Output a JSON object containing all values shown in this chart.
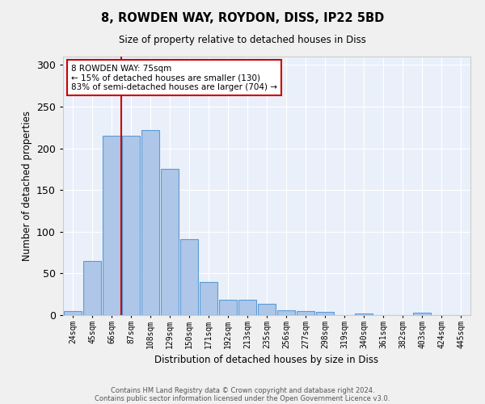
{
  "title": "8, ROWDEN WAY, ROYDON, DISS, IP22 5BD",
  "subtitle": "Size of property relative to detached houses in Diss",
  "xlabel": "Distribution of detached houses by size in Diss",
  "ylabel": "Number of detached properties",
  "categories": [
    "24sqm",
    "45sqm",
    "66sqm",
    "87sqm",
    "108sqm",
    "129sqm",
    "150sqm",
    "171sqm",
    "192sqm",
    "213sqm",
    "235sqm",
    "256sqm",
    "277sqm",
    "298sqm",
    "319sqm",
    "340sqm",
    "361sqm",
    "382sqm",
    "403sqm",
    "424sqm",
    "445sqm"
  ],
  "values": [
    5,
    65,
    215,
    215,
    222,
    175,
    91,
    40,
    18,
    18,
    14,
    6,
    5,
    4,
    0,
    2,
    0,
    0,
    3,
    0,
    0
  ],
  "bar_color": "#aec6e8",
  "bar_edge_color": "#5b9bd5",
  "background_color": "#eaf0fa",
  "grid_color": "#ffffff",
  "annotation_text": "8 ROWDEN WAY: 75sqm\n← 15% of detached houses are smaller (130)\n83% of semi-detached houses are larger (704) →",
  "annotation_box_color": "#ffffff",
  "annotation_box_edge": "#cc0000",
  "vline_color": "#cc0000",
  "ylim": [
    0,
    310
  ],
  "yticks": [
    0,
    50,
    100,
    150,
    200,
    250,
    300
  ],
  "footer1": "Contains HM Land Registry data © Crown copyright and database right 2024.",
  "footer2": "Contains public sector information licensed under the Open Government Licence v3.0."
}
